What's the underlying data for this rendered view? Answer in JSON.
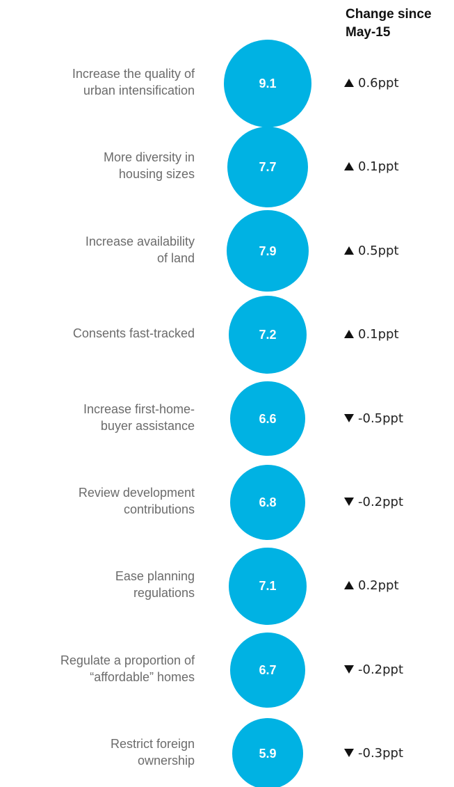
{
  "chart_data": {
    "type": "bubble",
    "column_title": "Change since May-15",
    "categories": [
      [
        "Increase the quality of",
        "urban intensification"
      ],
      [
        "More diversity in",
        "housing sizes"
      ],
      [
        "Increase availability",
        "of land"
      ],
      [
        "Consents fast-tracked"
      ],
      [
        "Increase first-home-",
        "buyer assistance"
      ],
      [
        "Review development",
        "contributions"
      ],
      [
        "Ease planning",
        "regulations"
      ],
      [
        "Regulate a proportion of",
        "“affordable” homes"
      ],
      [
        "Restrict foreign",
        "ownership"
      ]
    ],
    "values": [
      9.1,
      7.7,
      7.9,
      7.2,
      6.6,
      6.8,
      7.1,
      6.7,
      5.9
    ],
    "color": "#00b2e3",
    "changes": [
      0.6,
      0.1,
      0.5,
      0.1,
      -0.5,
      -0.2,
      0.2,
      -0.2,
      -0.3
    ],
    "change_labels": [
      "0.6ppt",
      "0.1ppt",
      "0.5ppt",
      "0.1ppt",
      "-0.5ppt",
      "-0.2ppt",
      "0.2ppt",
      "-0.2ppt",
      "-0.3ppt"
    ]
  }
}
